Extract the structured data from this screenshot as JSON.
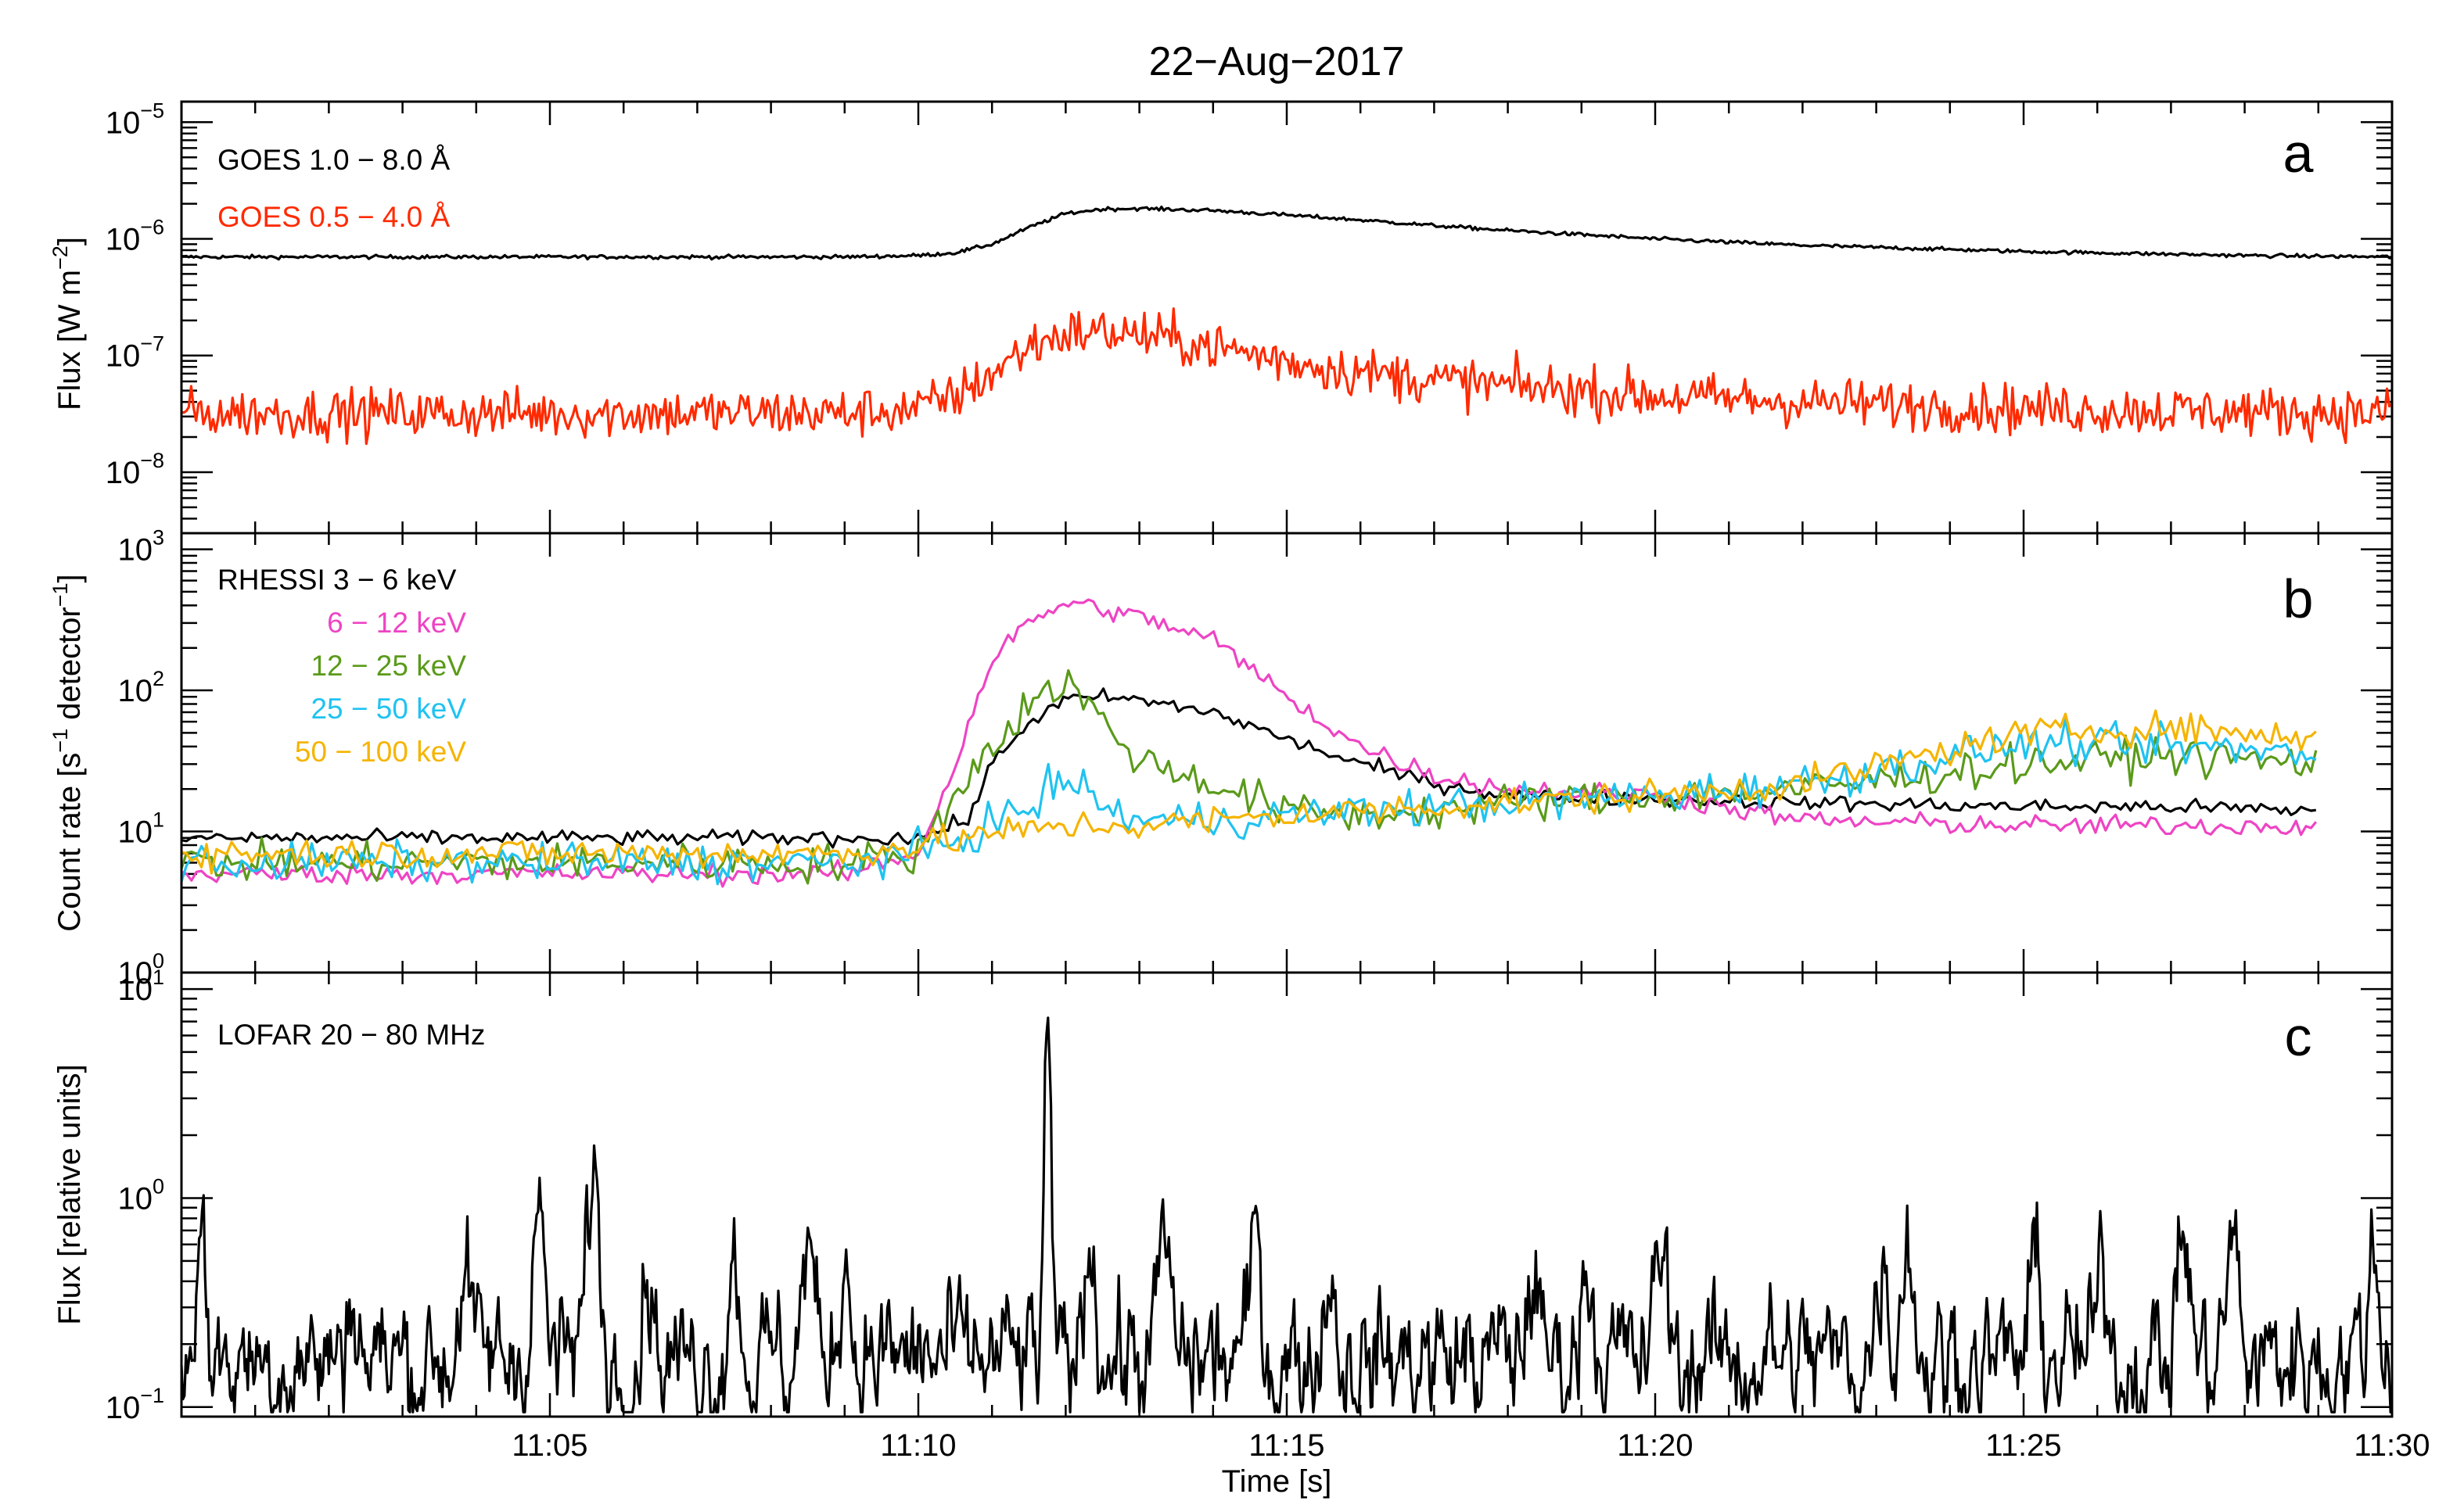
{
  "title": "22−Aug−2017",
  "xaxis": {
    "label": "Time [s]",
    "start": "11:00",
    "end": "11:30",
    "tick_labels": [
      "11:05",
      "11:10",
      "11:15",
      "11:20",
      "11:25",
      "11:30"
    ],
    "tick_values": [
      "11:05",
      "11:10",
      "11:15",
      "11:20",
      "11:25",
      "11:30"
    ]
  },
  "chart_data": [
    {
      "type": "line",
      "panel_letter": "a",
      "ylabel": {
        "main": "Flux [W m",
        "sup": "−2",
        "end": "]"
      },
      "yscale": "log",
      "ylim": [
        3e-09,
        1.5e-05
      ],
      "ytick_labels": [
        {
          "base": "10",
          "exp": "−5",
          "value": 1e-05
        },
        {
          "base": "10",
          "exp": "−6",
          "value": 1e-06
        },
        {
          "base": "10",
          "exp": "−7",
          "value": 1e-07
        },
        {
          "base": "10",
          "exp": "−8",
          "value": 1e-08
        }
      ],
      "series": [
        {
          "name": "GOES 1.0 − 8.0 Å",
          "color": "#000000",
          "x": [
            "11:00",
            "11:05",
            "11:09",
            "11:10",
            "11:10:30",
            "11:11",
            "11:11:30",
            "11:12",
            "11:12:30",
            "11:13",
            "11:14",
            "11:15",
            "11:16",
            "11:17",
            "11:18",
            "11:20",
            "11:22",
            "11:25",
            "11:28",
            "11:30"
          ],
          "y": [
            7e-07,
            7e-07,
            7e-07,
            7.2e-07,
            7.6e-07,
            9e-07,
            1.25e-06,
            1.65e-06,
            1.8e-06,
            1.82e-06,
            1.75e-06,
            1.6e-06,
            1.45e-06,
            1.3e-06,
            1.18e-06,
            1e-06,
            8.8e-07,
            7.8e-07,
            7.2e-07,
            7e-07
          ],
          "noise": 0.015
        },
        {
          "name": "GOES 0.5 − 4.0 Å",
          "color": "#ff2a00",
          "x": [
            "11:00",
            "11:05",
            "11:09",
            "11:10",
            "11:10:30",
            "11:11",
            "11:11:30",
            "11:12",
            "11:12:30",
            "11:13",
            "11:14",
            "11:15",
            "11:16",
            "11:17",
            "11:18",
            "11:20",
            "11:22",
            "11:25",
            "11:28",
            "11:30"
          ],
          "y": [
            3.2e-08,
            3.2e-08,
            3.2e-08,
            3.5e-08,
            4.5e-08,
            7e-08,
            1.2e-07,
            1.55e-07,
            1.6e-07,
            1.5e-07,
            1.2e-07,
            9e-08,
            7.2e-08,
            6.2e-08,
            5.5e-08,
            4.5e-08,
            4e-08,
            3.5e-08,
            3.3e-08,
            3.2e-08
          ],
          "noise": 0.2
        }
      ]
    },
    {
      "type": "line",
      "panel_letter": "b",
      "ylabel": {
        "main": "Count rate [s",
        "sup1": "−1",
        "mid": " detector",
        "sup2": "−1",
        "end": "]"
      },
      "yscale": "log",
      "ylim": [
        1,
        1300
      ],
      "ytick_labels": [
        {
          "base": "10",
          "exp": "3",
          "value": 1000
        },
        {
          "base": "10",
          "exp": "2",
          "value": 100
        },
        {
          "base": "10",
          "exp": "1",
          "value": 10
        },
        {
          "base": "10",
          "exp": "0",
          "value": 1
        }
      ],
      "series": [
        {
          "name": "RHESSI 3 − 6 keV",
          "color": "#000000",
          "x": [
            "11:00",
            "11:05",
            "11:09",
            "11:10",
            "11:10:40",
            "11:11",
            "11:11:30",
            "11:12",
            "11:12:30",
            "11:13",
            "11:14",
            "11:15",
            "11:16",
            "11:17",
            "11:18",
            "11:20",
            "11:22",
            "11:25",
            "11:27",
            "11:29"
          ],
          "y": [
            9,
            9,
            9,
            9,
            12,
            30,
            60,
            85,
            90,
            85,
            70,
            45,
            30,
            22,
            18,
            17,
            16,
            15,
            15,
            14
          ],
          "noise": 0.06
        },
        {
          "name": "6 − 12 keV",
          "color": "#ee44c4",
          "x": [
            "11:00",
            "11:05",
            "11:09",
            "11:10",
            "11:10:30",
            "11:11",
            "11:11:30",
            "11:12",
            "11:12:30",
            "11:13",
            "11:14",
            "11:15",
            "11:16",
            "11:17",
            "11:18",
            "11:20",
            "11:22",
            "11:25",
            "11:27",
            "11:29"
          ],
          "y": [
            5,
            5,
            5,
            7,
            30,
            170,
            300,
            420,
            380,
            330,
            230,
            90,
            40,
            25,
            20,
            18,
            12,
            11,
            11,
            11
          ],
          "noise": 0.08
        },
        {
          "name": "12 − 25 keV",
          "color": "#5a9a1a",
          "x": [
            "11:00",
            "11:05",
            "11:09",
            "11:10",
            "11:10:40",
            "11:11",
            "11:11:30",
            "11:12",
            "11:12:30",
            "11:13",
            "11:14",
            "11:15",
            "11:16",
            "11:17",
            "11:18",
            "11:20",
            "11:22",
            "11:25",
            "11:27",
            "11:29"
          ],
          "y": [
            6,
            6,
            6,
            7,
            25,
            40,
            80,
            120,
            60,
            32,
            22,
            14,
            13,
            14,
            16,
            18,
            20,
            30,
            35,
            30
          ],
          "noise": 0.15
        },
        {
          "name": "25 − 50 keV",
          "color": "#1fc3f0",
          "x": [
            "11:00",
            "11:05",
            "11:09",
            "11:10",
            "11:10:40",
            "11:11",
            "11:11:30",
            "11:12",
            "11:12:30",
            "11:13",
            "11:14",
            "11:15",
            "11:16",
            "11:17",
            "11:18",
            "11:20",
            "11:22",
            "11:25",
            "11:27",
            "11:29"
          ],
          "y": [
            6,
            6,
            6,
            7,
            9,
            12,
            14,
            25,
            15,
            12,
            12,
            13,
            14,
            15,
            16,
            18,
            22,
            42,
            40,
            36
          ],
          "noise": 0.15
        },
        {
          "name": "50 − 100 keV",
          "color": "#f5b400",
          "x": [
            "11:00",
            "11:05",
            "11:09",
            "11:10",
            "11:10:40",
            "11:11",
            "11:11:30",
            "11:12",
            "11:12:30",
            "11:13",
            "11:14",
            "11:15",
            "11:16",
            "11:17",
            "11:18",
            "11:20",
            "11:22",
            "11:25",
            "11:27",
            "11:29"
          ],
          "y": [
            7,
            7,
            7,
            8,
            9,
            10,
            10,
            11,
            11,
            11,
            12,
            13,
            14,
            15,
            16,
            18,
            22,
            50,
            55,
            45
          ],
          "noise": 0.12
        }
      ]
    },
    {
      "type": "line",
      "panel_letter": "c",
      "ylabel": {
        "main": "Flux [relative units]"
      },
      "yscale": "log",
      "ylim": [
        0.09,
        12
      ],
      "ytick_labels": [
        {
          "base": "10",
          "exp": "1",
          "value": 10
        },
        {
          "base": "10",
          "exp": "0",
          "value": 1
        },
        {
          "base": "10",
          "exp": "−1",
          "value": 0.1
        }
      ],
      "series": [
        {
          "name": "LOFAR 20 − 80 MHz",
          "color": "#000000",
          "baseline": 0.17,
          "noise": 0.25,
          "x_end": "11:30",
          "peaks_x": [
            "11:00:15",
            "11:02:20",
            "11:03:50",
            "11:04:50",
            "11:05:35",
            "11:06:20",
            "11:07:30",
            "11:08:30",
            "11:09:00",
            "11:11:45",
            "11:12:20",
            "11:13:20",
            "11:14:35",
            "11:15:35",
            "11:18:20",
            "11:19:05",
            "11:20:05",
            "11:23:05",
            "11:23:25",
            "11:25:10",
            "11:26:05",
            "11:27:10",
            "11:27:50",
            "11:29:45"
          ],
          "peaks_y": [
            0.6,
            0.35,
            0.45,
            0.9,
            1.3,
            0.5,
            0.55,
            0.6,
            0.55,
            4.3,
            0.7,
            0.6,
            0.62,
            0.45,
            0.45,
            0.55,
            0.6,
            0.55,
            0.75,
            0.45,
            0.45,
            0.72,
            0.6,
            0.55
          ]
        }
      ]
    }
  ]
}
